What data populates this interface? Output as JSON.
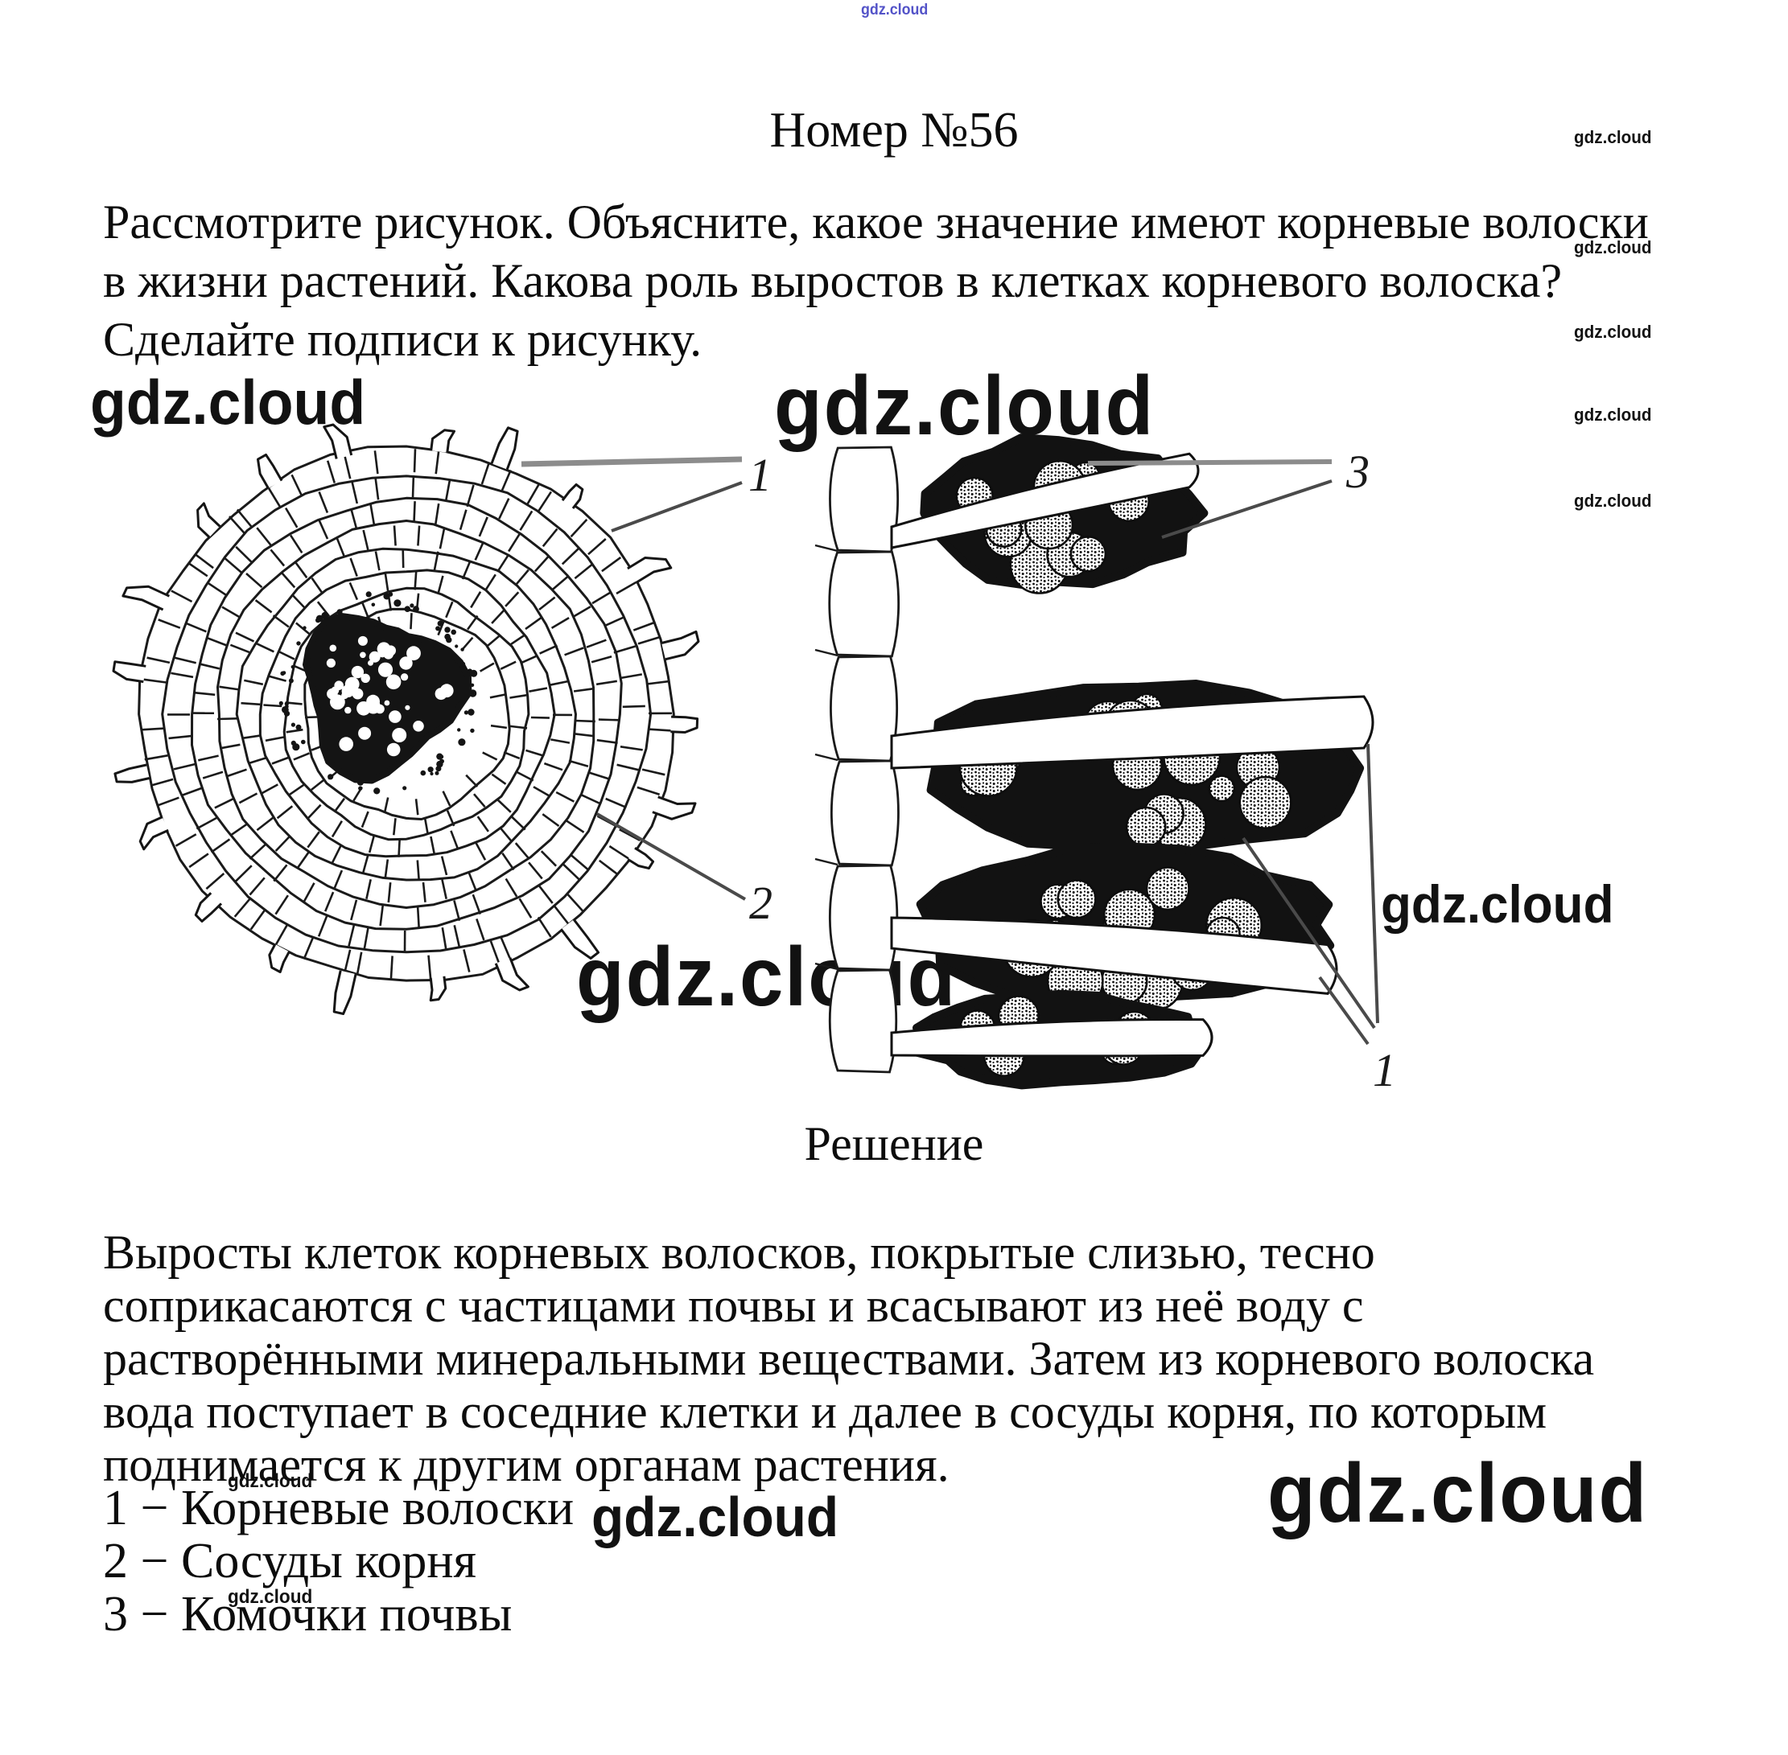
{
  "watermark": {
    "text": "gdz.cloud",
    "blue": "#5353c8",
    "black": "#121212"
  },
  "header": {
    "title": "Номер №56"
  },
  "question": {
    "lines": [
      "Рассмотрите рисунок. Объясните, какое значение имеют корневые волоски",
      "в жизни растений. Какова роль выростов в клетках корневого волоска?",
      "Сделайте подписи к рисунку."
    ]
  },
  "figure": {
    "left_top_label": "1",
    "left_bottom_label": "2",
    "right_top_label": "3",
    "right_bottom_label": "1"
  },
  "solution": {
    "heading": "Решение",
    "lines": [
      "Выросты клеток корневых волосков, покрытые слизью, тесно",
      "соприкасаются с частицами почвы и всасывают из неё воду с",
      "растворёнными минеральными веществами. Затем из корневого волоска",
      "вода поступает в соседние клетки и далее в сосуды корня, по которым",
      "поднимается к другим органам растения."
    ],
    "legend": [
      {
        "text": "1 − Корневые волоски"
      },
      {
        "text": "2 − Сосуды корня"
      },
      {
        "text": "3 − Комочки почвы"
      }
    ]
  }
}
